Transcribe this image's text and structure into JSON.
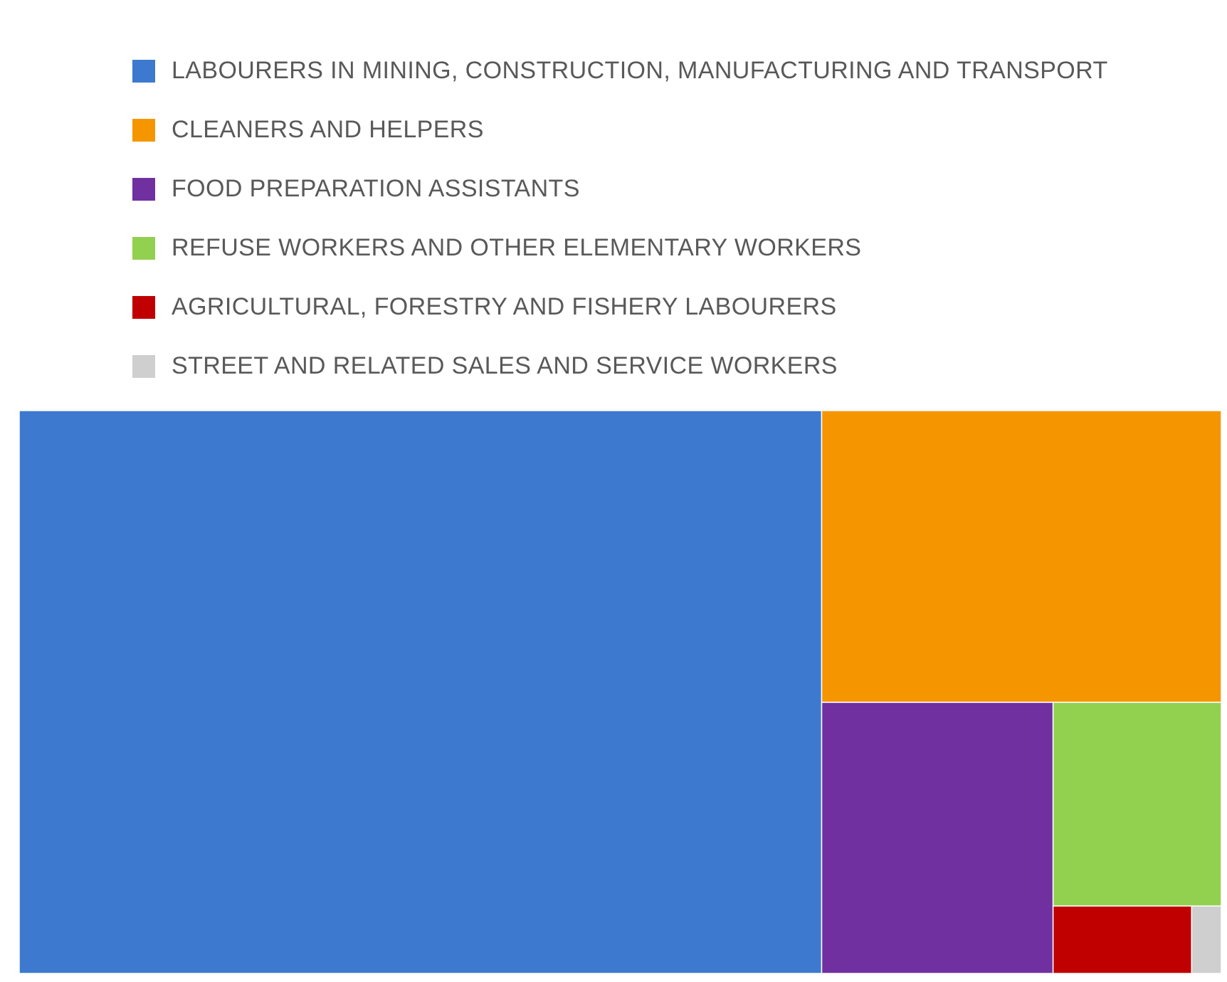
{
  "chart_data": {
    "type": "treemap",
    "title": "",
    "legend_position": "top",
    "series": [
      {
        "name": "LABOURERS IN MINING, CONSTRUCTION, MANUFACTURING AND TRANSPORT",
        "value": 1015,
        "color": "#3D7ACF"
      },
      {
        "name": "CLEANERS AND HELPERS",
        "value": 262,
        "color": "#F59600"
      },
      {
        "name": "FOOD PREPARATION ASSISTANTS",
        "value": 141,
        "color": "#7030A0"
      },
      {
        "name": "REFUSE WORKERS AND OTHER ELEMENTARY WORKERS",
        "value": 77,
        "color": "#92D050"
      },
      {
        "name": "AGRICULTURAL, FORESTRY AND FISHERY LABOURERS",
        "value": 21,
        "color": "#C00000"
      },
      {
        "name": "STREET AND RELATED SALES AND SERVICE WORKERS",
        "value": 4.5,
        "color": "#D0CFCF"
      }
    ]
  }
}
